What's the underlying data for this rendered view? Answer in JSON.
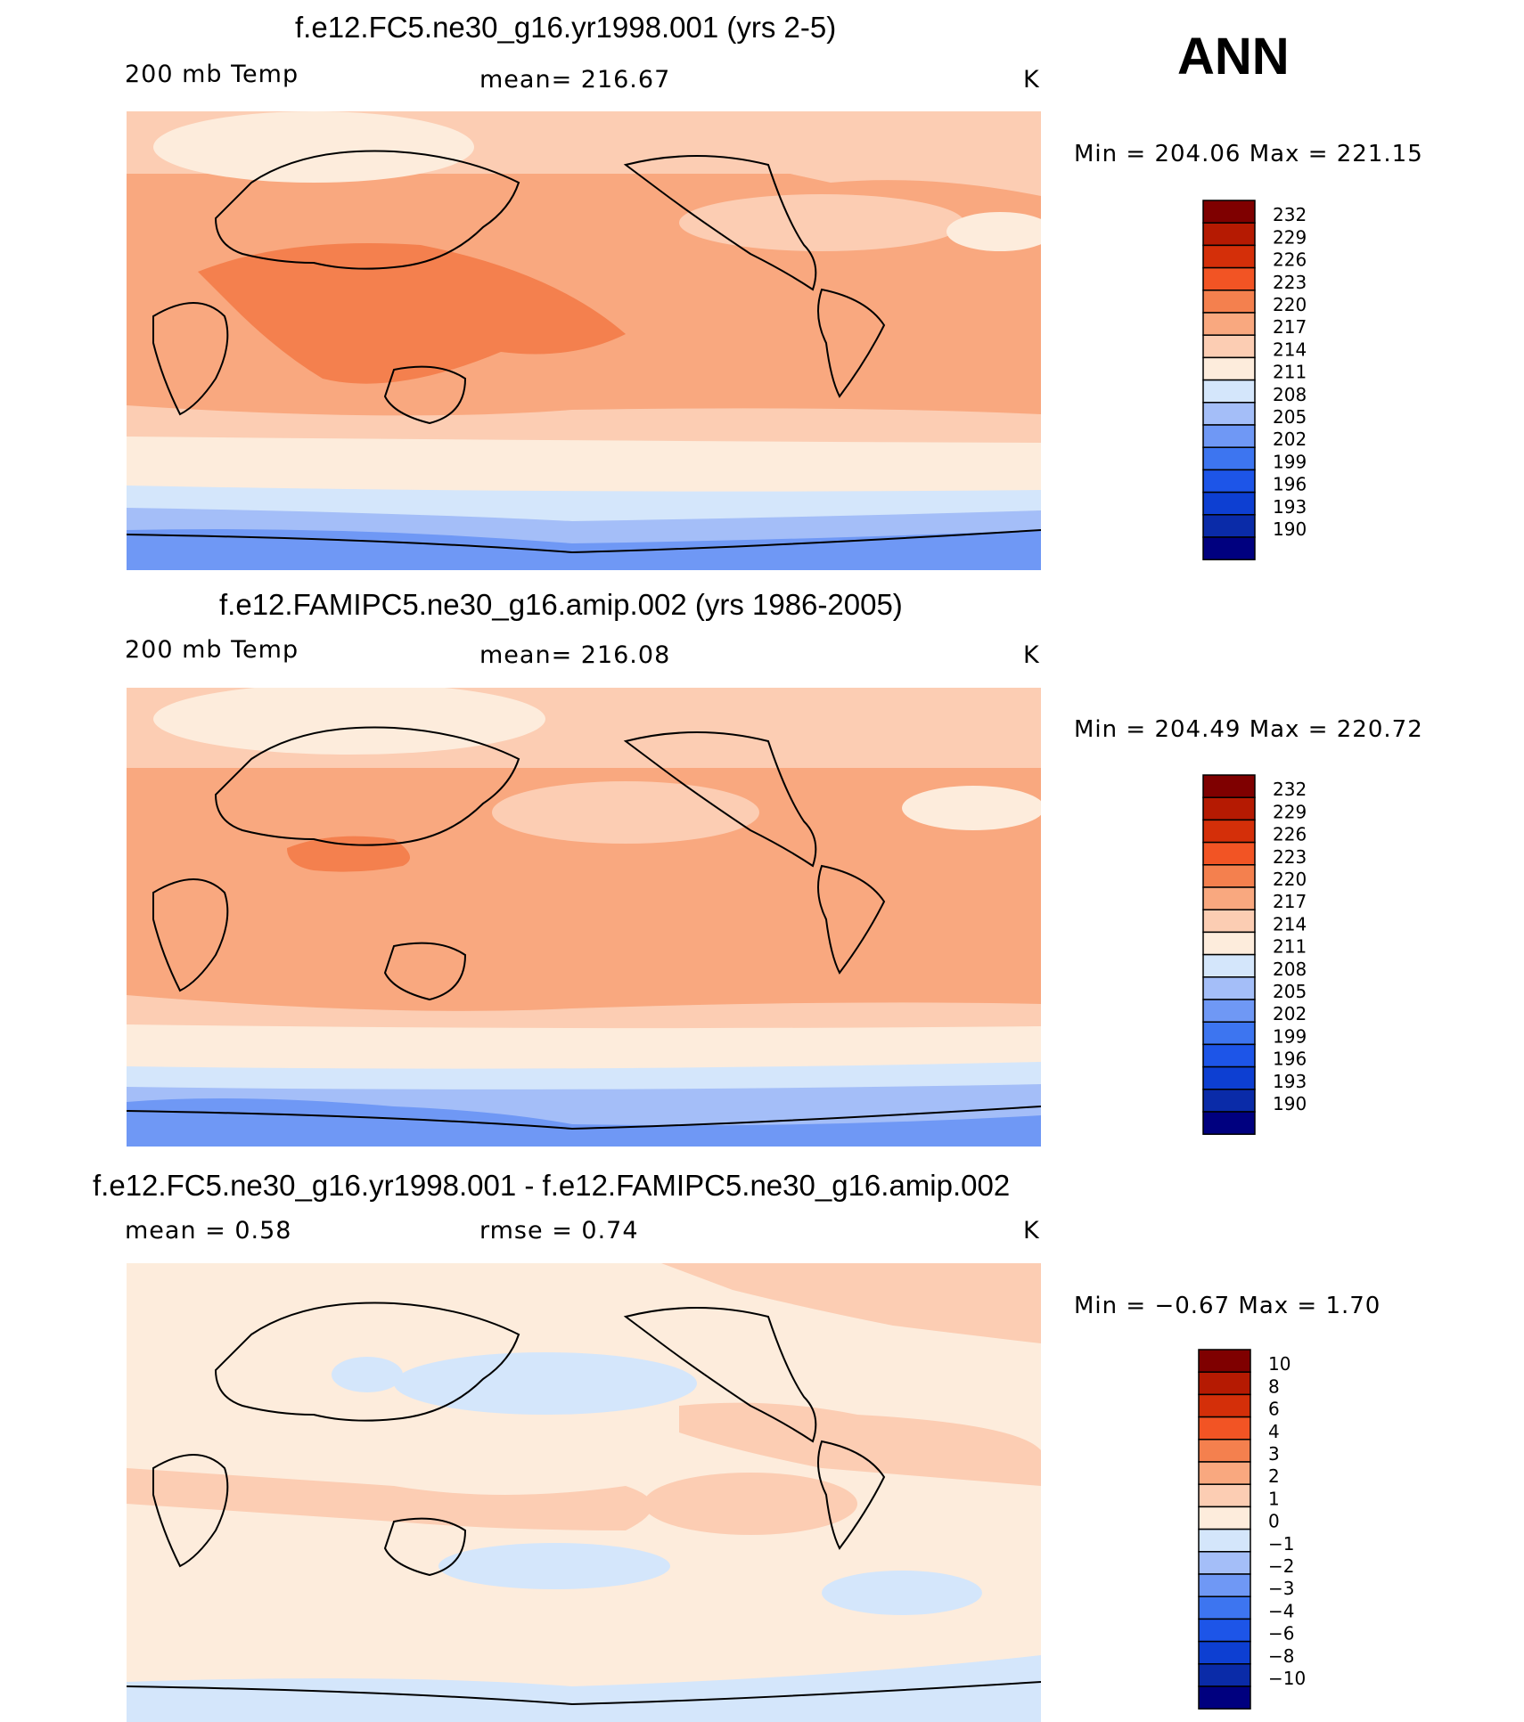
{
  "season": "ANN",
  "colors": {
    "temp_scale": [
      "#00007f",
      "#0a2ba8",
      "#0d3fd2",
      "#1d55e8",
      "#3d75f0",
      "#6f98f5",
      "#a4bef8",
      "#d4e6fb",
      "#fdecdc",
      "#fccdb3",
      "#f9a87f",
      "#f4804e",
      "#f25424",
      "#d42f09",
      "#b51a02",
      "#7f0000"
    ],
    "diff_scale": [
      "#00007f",
      "#0a2ba8",
      "#0d3fd2",
      "#1d55e8",
      "#3d75f0",
      "#6f98f5",
      "#a4bef8",
      "#d4e6fb",
      "#fdecdc",
      "#fccdb3",
      "#f9a87f",
      "#f4804e",
      "#f25424",
      "#d42f09",
      "#b51a02",
      "#7f0000"
    ],
    "continent": "#000000"
  },
  "panels": [
    {
      "title": "f.e12.FC5.ne30_g16.yr1998.001 (yrs 2-5)",
      "left": "200 mb Temp",
      "center": "mean= 216.67",
      "right": "K",
      "minmax": "Min = 204.06 Max = 221.15",
      "colorbar_levels": [
        "232",
        "229",
        "226",
        "223",
        "220",
        "217",
        "214",
        "211",
        "208",
        "205",
        "202",
        "199",
        "196",
        "193",
        "190"
      ]
    },
    {
      "title": "f.e12.FAMIPC5.ne30_g16.amip.002 (yrs 1986-2005)",
      "left": "200 mb Temp",
      "center": "mean= 216.08",
      "right": "K",
      "minmax": "Min = 204.49 Max = 220.72",
      "colorbar_levels": [
        "232",
        "229",
        "226",
        "223",
        "220",
        "217",
        "214",
        "211",
        "208",
        "205",
        "202",
        "199",
        "196",
        "193",
        "190"
      ]
    },
    {
      "title": "f.e12.FC5.ne30_g16.yr1998.001 - f.e12.FAMIPC5.ne30_g16.amip.002",
      "left": "mean =    0.58",
      "center": "rmse =    0.74",
      "right": "K",
      "minmax": "Min =   −0.67 Max =     1.70",
      "colorbar_levels": [
        "10",
        "8",
        "6",
        "4",
        "3",
        "2",
        "1",
        "0",
        "−1",
        "−2",
        "−3",
        "−4",
        "−6",
        "−8",
        "−10"
      ]
    }
  ],
  "chart_data": [
    {
      "type": "heatmap",
      "title": "f.e12.FC5.ne30_g16.yr1998.001 (yrs 2-5)",
      "variable": "200 mb Temp",
      "units": "K",
      "mean": 216.67,
      "min": 204.06,
      "max": 221.15,
      "contour_levels": [
        190,
        193,
        196,
        199,
        202,
        205,
        208,
        211,
        214,
        217,
        220,
        223,
        226,
        229,
        232
      ]
    },
    {
      "type": "heatmap",
      "title": "f.e12.FAMIPC5.ne30_g16.amip.002 (yrs 1986-2005)",
      "variable": "200 mb Temp",
      "units": "K",
      "mean": 216.08,
      "min": 204.49,
      "max": 220.72,
      "contour_levels": [
        190,
        193,
        196,
        199,
        202,
        205,
        208,
        211,
        214,
        217,
        220,
        223,
        226,
        229,
        232
      ]
    },
    {
      "type": "heatmap",
      "title": "f.e12.FC5.ne30_g16.yr1998.001 - f.e12.FAMIPC5.ne30_g16.amip.002",
      "units": "K",
      "mean": 0.58,
      "rmse": 0.74,
      "min": -0.67,
      "max": 1.7,
      "contour_levels": [
        -10,
        -8,
        -6,
        -4,
        -3,
        -2,
        -1,
        0,
        1,
        2,
        3,
        4,
        6,
        8,
        10
      ]
    }
  ]
}
